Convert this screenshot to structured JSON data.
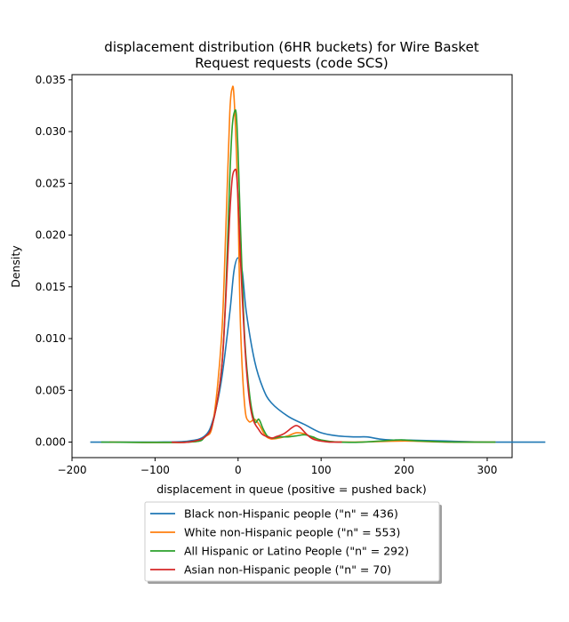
{
  "chart_data": {
    "type": "line",
    "title": [
      "displacement distribution (6HR buckets) for Wire Basket",
      "Request requests (code SCS)"
    ],
    "xlabel": "displacement in queue (positive = pushed back)",
    "ylabel": "Density",
    "xlim": [
      -200,
      330
    ],
    "ylim": [
      -0.0015,
      0.0355
    ],
    "x_ticks": [
      -200,
      -100,
      0,
      100,
      200,
      300
    ],
    "x_tick_labels": [
      "−200",
      "−100",
      "0",
      "100",
      "200",
      "300"
    ],
    "y_ticks": [
      0.0,
      0.005,
      0.01,
      0.015,
      0.02,
      0.025,
      0.03,
      0.035
    ],
    "y_tick_labels": [
      "0.000",
      "0.005",
      "0.010",
      "0.015",
      "0.020",
      "0.025",
      "0.030",
      "0.035"
    ],
    "grid": false,
    "legend_position": "below plot, centered",
    "series": [
      {
        "name": "Black non-Hispanic people (\"n\" = 436)",
        "color": "#1f77b4",
        "x": [
          -178,
          -100,
          -60,
          -40,
          -30,
          -20,
          -10,
          -5,
          0,
          5,
          10,
          20,
          30,
          40,
          60,
          80,
          100,
          120,
          140,
          155,
          170,
          185,
          200,
          250,
          300,
          370
        ],
        "y": [
          0.0,
          0.0,
          0.0001,
          0.0006,
          0.0022,
          0.006,
          0.0125,
          0.0165,
          0.0178,
          0.0165,
          0.0125,
          0.0078,
          0.0052,
          0.0038,
          0.0025,
          0.0017,
          0.0009,
          0.0006,
          0.0005,
          0.0005,
          0.0003,
          0.0002,
          0.0002,
          0.0001,
          0.0,
          0.0
        ]
      },
      {
        "name": "White non-Hispanic people (\"n\" = 553)",
        "color": "#ff7f0e",
        "x": [
          -155,
          -60,
          -40,
          -30,
          -20,
          -15,
          -10,
          -7,
          -5,
          -2,
          0,
          3,
          8,
          13,
          20,
          26,
          33,
          40,
          50,
          60,
          70,
          80,
          90,
          100,
          140,
          200,
          250,
          310
        ],
        "y": [
          0.0,
          0.0,
          0.0005,
          0.002,
          0.01,
          0.02,
          0.0318,
          0.0342,
          0.0335,
          0.028,
          0.0225,
          0.011,
          0.0035,
          0.002,
          0.0022,
          0.0016,
          0.0006,
          0.0003,
          0.0004,
          0.0006,
          0.0009,
          0.0008,
          0.0004,
          0.0001,
          0.0,
          0.0001,
          0.0,
          0.0
        ]
      },
      {
        "name": "All Hispanic or Latino People (\"n\" = 292)",
        "color": "#2ca02c",
        "x": [
          -165,
          -60,
          -40,
          -30,
          -20,
          -15,
          -10,
          -7,
          -4,
          -2,
          0,
          3,
          8,
          14,
          20,
          25,
          30,
          35,
          40,
          45,
          50,
          60,
          70,
          80,
          90,
          100,
          120,
          150,
          190,
          200,
          220,
          260,
          310
        ],
        "y": [
          0.0,
          0.0,
          0.0005,
          0.002,
          0.007,
          0.014,
          0.0255,
          0.0305,
          0.032,
          0.0315,
          0.028,
          0.0205,
          0.01,
          0.0045,
          0.002,
          0.0022,
          0.0013,
          0.0006,
          0.0004,
          0.0004,
          0.0005,
          0.0005,
          0.0006,
          0.0007,
          0.0005,
          0.0002,
          0.0,
          0.0,
          0.0002,
          0.0002,
          0.0001,
          0.0,
          0.0
        ]
      },
      {
        "name": "Asian non-Hispanic people (\"n\" = 70)",
        "color": "#d62728",
        "x": [
          -80,
          -60,
          -40,
          -30,
          -20,
          -15,
          -10,
          -7,
          -4,
          -2,
          0,
          3,
          8,
          13,
          18,
          25,
          30,
          40,
          45,
          55,
          65,
          70,
          75,
          82,
          90,
          100,
          110,
          125
        ],
        "y": [
          0.0,
          0.0,
          0.0005,
          0.002,
          0.007,
          0.0135,
          0.022,
          0.0255,
          0.0263,
          0.026,
          0.0235,
          0.0175,
          0.0095,
          0.0045,
          0.0022,
          0.0012,
          0.0007,
          0.0004,
          0.0005,
          0.0008,
          0.0014,
          0.0016,
          0.0014,
          0.0008,
          0.0003,
          0.0001,
          0.0,
          0.0
        ]
      }
    ]
  }
}
